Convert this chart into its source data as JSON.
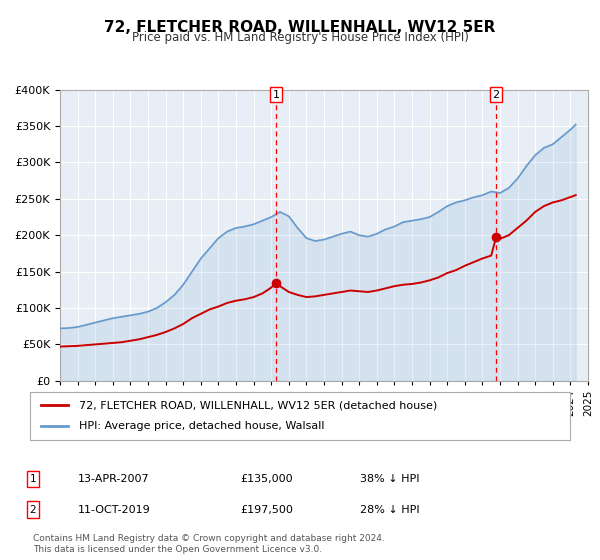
{
  "title": "72, FLETCHER ROAD, WILLENHALL, WV12 5ER",
  "subtitle": "Price paid vs. HM Land Registry's House Price Index (HPI)",
  "legend_line1": "72, FLETCHER ROAD, WILLENHALL, WV12 5ER (detached house)",
  "legend_line2": "HPI: Average price, detached house, Walsall",
  "footer1": "Contains HM Land Registry data © Crown copyright and database right 2024.",
  "footer2": "This data is licensed under the Open Government Licence v3.0.",
  "sale1_label": "1",
  "sale1_date": "13-APR-2007",
  "sale1_price": "£135,000",
  "sale1_hpi": "38% ↓ HPI",
  "sale1_year": 2007.28,
  "sale1_value": 135000,
  "sale2_label": "2",
  "sale2_date": "11-OCT-2019",
  "sale2_price": "£197,500",
  "sale2_hpi": "28% ↓ HPI",
  "sale2_year": 2019.78,
  "sale2_value": 197500,
  "red_color": "#cc0000",
  "blue_color": "#6699cc",
  "bg_color": "#e8eef5",
  "plot_bg": "#f0f4f8",
  "grid_color": "#ffffff",
  "ylim_min": 0,
  "ylim_max": 400000,
  "xlim_min": 1995,
  "xlim_max": 2025,
  "hpi_x": [
    1995,
    1995.5,
    1996,
    1996.5,
    1997,
    1997.5,
    1998,
    1998.5,
    1999,
    1999.5,
    2000,
    2000.5,
    2001,
    2001.5,
    2002,
    2002.5,
    2003,
    2003.5,
    2004,
    2004.5,
    2005,
    2005.5,
    2006,
    2006.5,
    2007,
    2007.5,
    2008,
    2008.5,
    2009,
    2009.5,
    2010,
    2010.5,
    2011,
    2011.5,
    2012,
    2012.5,
    2013,
    2013.5,
    2014,
    2014.5,
    2015,
    2015.5,
    2016,
    2016.5,
    2017,
    2017.5,
    2018,
    2018.5,
    2019,
    2019.5,
    2020,
    2020.5,
    2021,
    2021.5,
    2022,
    2022.5,
    2023,
    2023.5,
    2024,
    2024.3
  ],
  "hpi_y": [
    72000,
    72500,
    74000,
    77000,
    80000,
    83000,
    86000,
    88000,
    90000,
    92000,
    95000,
    100000,
    108000,
    118000,
    132000,
    150000,
    168000,
    182000,
    196000,
    205000,
    210000,
    212000,
    215000,
    220000,
    225000,
    232000,
    226000,
    210000,
    196000,
    192000,
    194000,
    198000,
    202000,
    205000,
    200000,
    198000,
    202000,
    208000,
    212000,
    218000,
    220000,
    222000,
    225000,
    232000,
    240000,
    245000,
    248000,
    252000,
    255000,
    260000,
    258000,
    265000,
    278000,
    295000,
    310000,
    320000,
    325000,
    335000,
    345000,
    352000
  ],
  "price_x": [
    1995.0,
    1995.5,
    1996.0,
    1996.5,
    1997.0,
    1997.5,
    1998.0,
    1998.5,
    1999.0,
    1999.5,
    2000.0,
    2000.5,
    2001.0,
    2001.5,
    2002.0,
    2002.5,
    2003.0,
    2003.5,
    2004.0,
    2004.5,
    2005.0,
    2005.5,
    2006.0,
    2006.5,
    2007.0,
    2007.28,
    2007.5,
    2008.0,
    2008.5,
    2009.0,
    2009.5,
    2010.0,
    2010.5,
    2011.0,
    2011.5,
    2012.0,
    2012.5,
    2013.0,
    2013.5,
    2014.0,
    2014.5,
    2015.0,
    2015.5,
    2016.0,
    2016.5,
    2017.0,
    2017.5,
    2018.0,
    2018.5,
    2019.0,
    2019.5,
    2019.78,
    2020.0,
    2020.5,
    2021.0,
    2021.5,
    2022.0,
    2022.5,
    2023.0,
    2023.5,
    2024.3
  ],
  "price_y": [
    47000,
    47500,
    48000,
    49000,
    50000,
    51000,
    52000,
    53000,
    55000,
    57000,
    60000,
    63000,
    67000,
    72000,
    78000,
    86000,
    92000,
    98000,
    102000,
    107000,
    110000,
    112000,
    115000,
    120000,
    128000,
    135000,
    130000,
    122000,
    118000,
    115000,
    116000,
    118000,
    120000,
    122000,
    124000,
    123000,
    122000,
    124000,
    127000,
    130000,
    132000,
    133000,
    135000,
    138000,
    142000,
    148000,
    152000,
    158000,
    163000,
    168000,
    172000,
    197500,
    195000,
    200000,
    210000,
    220000,
    232000,
    240000,
    245000,
    248000,
    255000
  ]
}
